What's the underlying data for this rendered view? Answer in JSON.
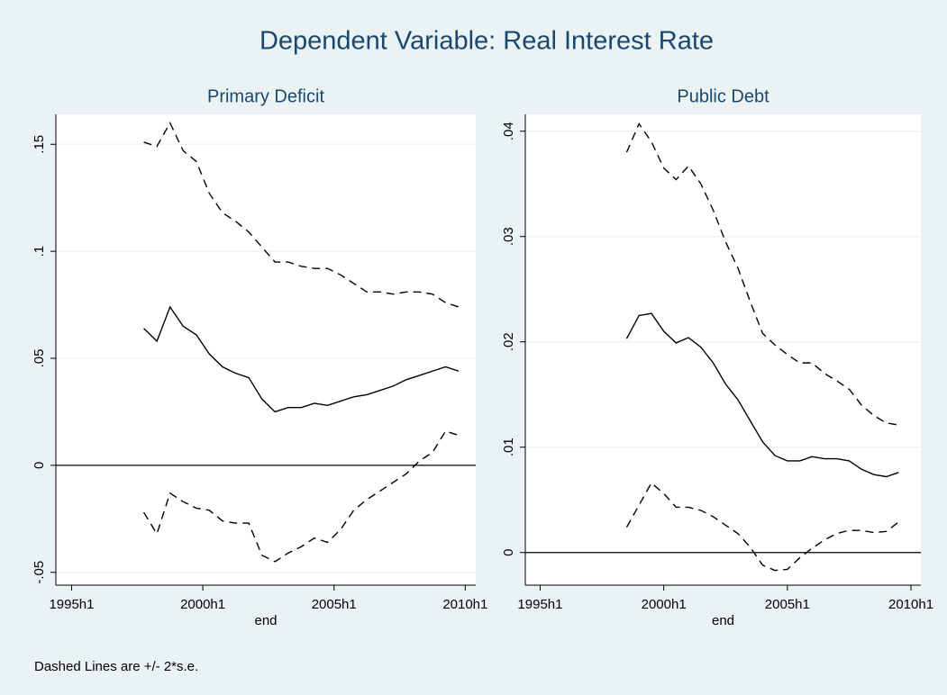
{
  "title": "Dependent Variable: Real Interest Rate",
  "note": "Dashed Lines are +/- 2*s.e.",
  "chart_data": [
    {
      "type": "line",
      "title": "Primary Deficit",
      "xlabel": "end",
      "x": [
        1997.75,
        1998.25,
        1998.75,
        1999.25,
        1999.75,
        2000.25,
        2000.75,
        2001.25,
        2001.75,
        2002.25,
        2002.75,
        2003.25,
        2003.75,
        2004.25,
        2004.75,
        2005.25,
        2005.75,
        2006.25,
        2006.75,
        2007.25,
        2007.75,
        2008.25,
        2008.75,
        2009.25,
        2009.75
      ],
      "series": [
        {
          "color": "#000000",
          "line_style": "dashed",
          "values": [
            0.151,
            0.149,
            0.16,
            0.147,
            0.142,
            0.127,
            0.118,
            0.114,
            0.109,
            0.102,
            0.095,
            0.095,
            0.093,
            0.092,
            0.092,
            0.089,
            0.085,
            0.081,
            0.081,
            0.08,
            0.081,
            0.081,
            0.08,
            0.076,
            0.074
          ]
        },
        {
          "color": "#000000",
          "line_style": "solid",
          "values": [
            0.064,
            0.058,
            0.074,
            0.065,
            0.061,
            0.052,
            0.046,
            0.043,
            0.041,
            0.031,
            0.025,
            0.027,
            0.027,
            0.029,
            0.028,
            0.03,
            0.032,
            0.033,
            0.035,
            0.037,
            0.04,
            0.042,
            0.044,
            0.046,
            0.044
          ]
        },
        {
          "color": "#000000",
          "line_style": "dashed",
          "values": [
            -0.022,
            -0.032,
            -0.013,
            -0.017,
            -0.02,
            -0.021,
            -0.026,
            -0.027,
            -0.027,
            -0.042,
            -0.045,
            -0.041,
            -0.038,
            -0.034,
            -0.036,
            -0.03,
            -0.021,
            -0.016,
            -0.012,
            -0.008,
            -0.004,
            0.002,
            0.006,
            0.016,
            0.014
          ]
        }
      ],
      "xlim": [
        1994.4,
        2010.4
      ],
      "xticks": [
        {
          "value": 1995,
          "label": "1995h1"
        },
        {
          "value": 2000,
          "label": "2000h1"
        },
        {
          "value": 2005,
          "label": "2005h1"
        },
        {
          "value": 2010,
          "label": "2010h1"
        }
      ],
      "ylim": [
        -0.056,
        0.164
      ],
      "yticks": [
        {
          "value": -0.05,
          "label": "-.05"
        },
        0,
        {
          "value": 0.05,
          "label": ".05"
        },
        {
          "value": 0.1,
          "label": ".1"
        },
        {
          "value": 0.15,
          "label": ".15"
        }
      ],
      "reference_line": 0,
      "grid": true
    },
    {
      "type": "line",
      "title": "Public Debt",
      "xlabel": "end",
      "x": [
        1998.5,
        1999,
        1999.5,
        2000,
        2000.5,
        2001,
        2001.5,
        2002,
        2002.5,
        2003,
        2003.5,
        2004,
        2004.5,
        2005,
        2005.5,
        2006,
        2006.5,
        2007,
        2007.5,
        2008,
        2008.5,
        2009,
        2009.5
      ],
      "series": [
        {
          "color": "#000000",
          "line_style": "dashed",
          "values": [
            0.038,
            0.0407,
            0.039,
            0.0365,
            0.0354,
            0.0367,
            0.035,
            0.0325,
            0.0295,
            0.027,
            0.0238,
            0.0208,
            0.0197,
            0.0188,
            0.018,
            0.018,
            0.017,
            0.0163,
            0.0155,
            0.014,
            0.013,
            0.0123,
            0.0121
          ]
        },
        {
          "color": "#000000",
          "line_style": "solid",
          "values": [
            0.0203,
            0.0225,
            0.0227,
            0.021,
            0.0199,
            0.0204,
            0.0195,
            0.018,
            0.016,
            0.0145,
            0.0125,
            0.0105,
            0.0092,
            0.0087,
            0.0087,
            0.0091,
            0.0089,
            0.0089,
            0.0087,
            0.0079,
            0.0074,
            0.0072,
            0.0076
          ]
        },
        {
          "color": "#000000",
          "line_style": "dashed",
          "values": [
            0.0024,
            0.0045,
            0.0066,
            0.0056,
            0.0043,
            0.0043,
            0.004,
            0.0034,
            0.0026,
            0.0018,
            0.0005,
            -0.0012,
            -0.0017,
            -0.0016,
            -0.0005,
            0.0004,
            0.0012,
            0.0018,
            0.0021,
            0.0021,
            0.0019,
            0.002,
            0.0029
          ]
        }
      ],
      "xlim": [
        1994.4,
        2010.4
      ],
      "xticks": [
        {
          "value": 1995,
          "label": "1995h1"
        },
        {
          "value": 2000,
          "label": "2000h1"
        },
        {
          "value": 2005,
          "label": "2005h1"
        },
        {
          "value": 2010,
          "label": "2010h1"
        }
      ],
      "ylim": [
        -0.0031,
        0.0416
      ],
      "yticks": [
        0,
        {
          "value": 0.01,
          "label": ".01"
        },
        {
          "value": 0.02,
          "label": ".02"
        },
        {
          "value": 0.03,
          "label": ".03"
        },
        {
          "value": 0.04,
          "label": ".04"
        }
      ],
      "reference_line": 0,
      "grid": true
    }
  ]
}
